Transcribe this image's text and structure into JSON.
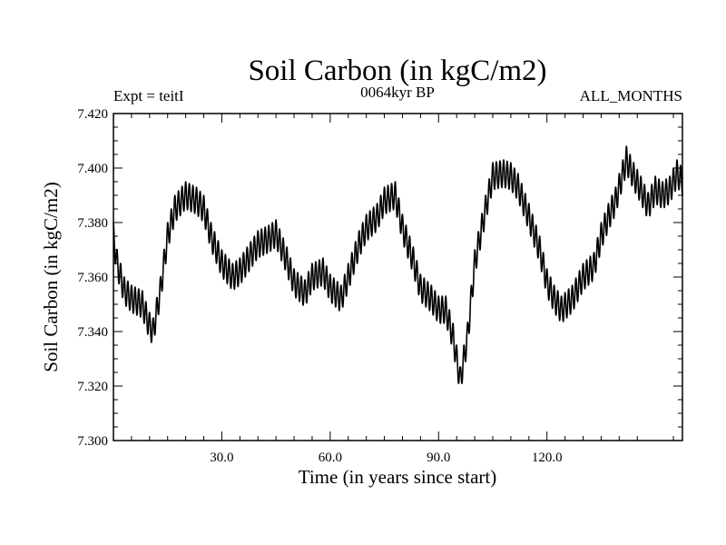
{
  "chart_data": {
    "type": "line",
    "title": "Soil Carbon (in kgC/m2)",
    "subtitle_left": "Expt = teitI",
    "subtitle_center": "0064kyr BP",
    "subtitle_right": "ALL_MONTHS",
    "xlabel": "Time (in years since start)",
    "ylabel": "Soil Carbon (in kgC/m2)",
    "xlim": [
      0,
      157.5
    ],
    "ylim": [
      7.3,
      7.42
    ],
    "x_ticks": [
      30,
      60,
      90,
      120
    ],
    "x_tick_labels": [
      "30.0",
      "60.0",
      "90.0",
      "120.0"
    ],
    "y_ticks": [
      7.3,
      7.32,
      7.34,
      7.36,
      7.38,
      7.4,
      7.42
    ],
    "y_tick_labels": [
      "7.300",
      "7.320",
      "7.340",
      "7.360",
      "7.380",
      "7.400",
      "7.420"
    ],
    "grid": false,
    "series": [
      {
        "name": "Soil Carbon",
        "color": "#000000",
        "seasonal_amplitude": 0.005,
        "trend": {
          "x": [
            0,
            1,
            3,
            5,
            8,
            10,
            11,
            13,
            15,
            17,
            20,
            23,
            25,
            27,
            30,
            33,
            35,
            38,
            40,
            43,
            45,
            48,
            50,
            53,
            55,
            58,
            60,
            63,
            65,
            68,
            70,
            73,
            75,
            78,
            80,
            83,
            85,
            88,
            90,
            92,
            94,
            96,
            98,
            100,
            103,
            105,
            108,
            110,
            112,
            115,
            118,
            120,
            122,
            124,
            127,
            130,
            133,
            135,
            137,
            139,
            140,
            142,
            144,
            146,
            148,
            150,
            152,
            154,
            156,
            157.5
          ],
          "y": [
            7.375,
            7.365,
            7.355,
            7.352,
            7.35,
            7.342,
            7.34,
            7.355,
            7.375,
            7.385,
            7.39,
            7.388,
            7.385,
            7.375,
            7.365,
            7.36,
            7.362,
            7.368,
            7.372,
            7.374,
            7.376,
            7.366,
            7.358,
            7.354,
            7.36,
            7.362,
            7.356,
            7.352,
            7.36,
            7.372,
            7.378,
            7.382,
            7.388,
            7.39,
            7.378,
            7.366,
            7.356,
            7.352,
            7.348,
            7.348,
            7.338,
            7.322,
            7.338,
            7.365,
            7.385,
            7.397,
            7.398,
            7.397,
            7.393,
            7.382,
            7.37,
            7.358,
            7.352,
            7.348,
            7.352,
            7.36,
            7.364,
            7.375,
            7.382,
            7.388,
            7.393,
            7.403,
            7.397,
            7.392,
            7.386,
            7.392,
            7.39,
            7.392,
            7.398,
            7.395
          ]
        }
      }
    ]
  }
}
